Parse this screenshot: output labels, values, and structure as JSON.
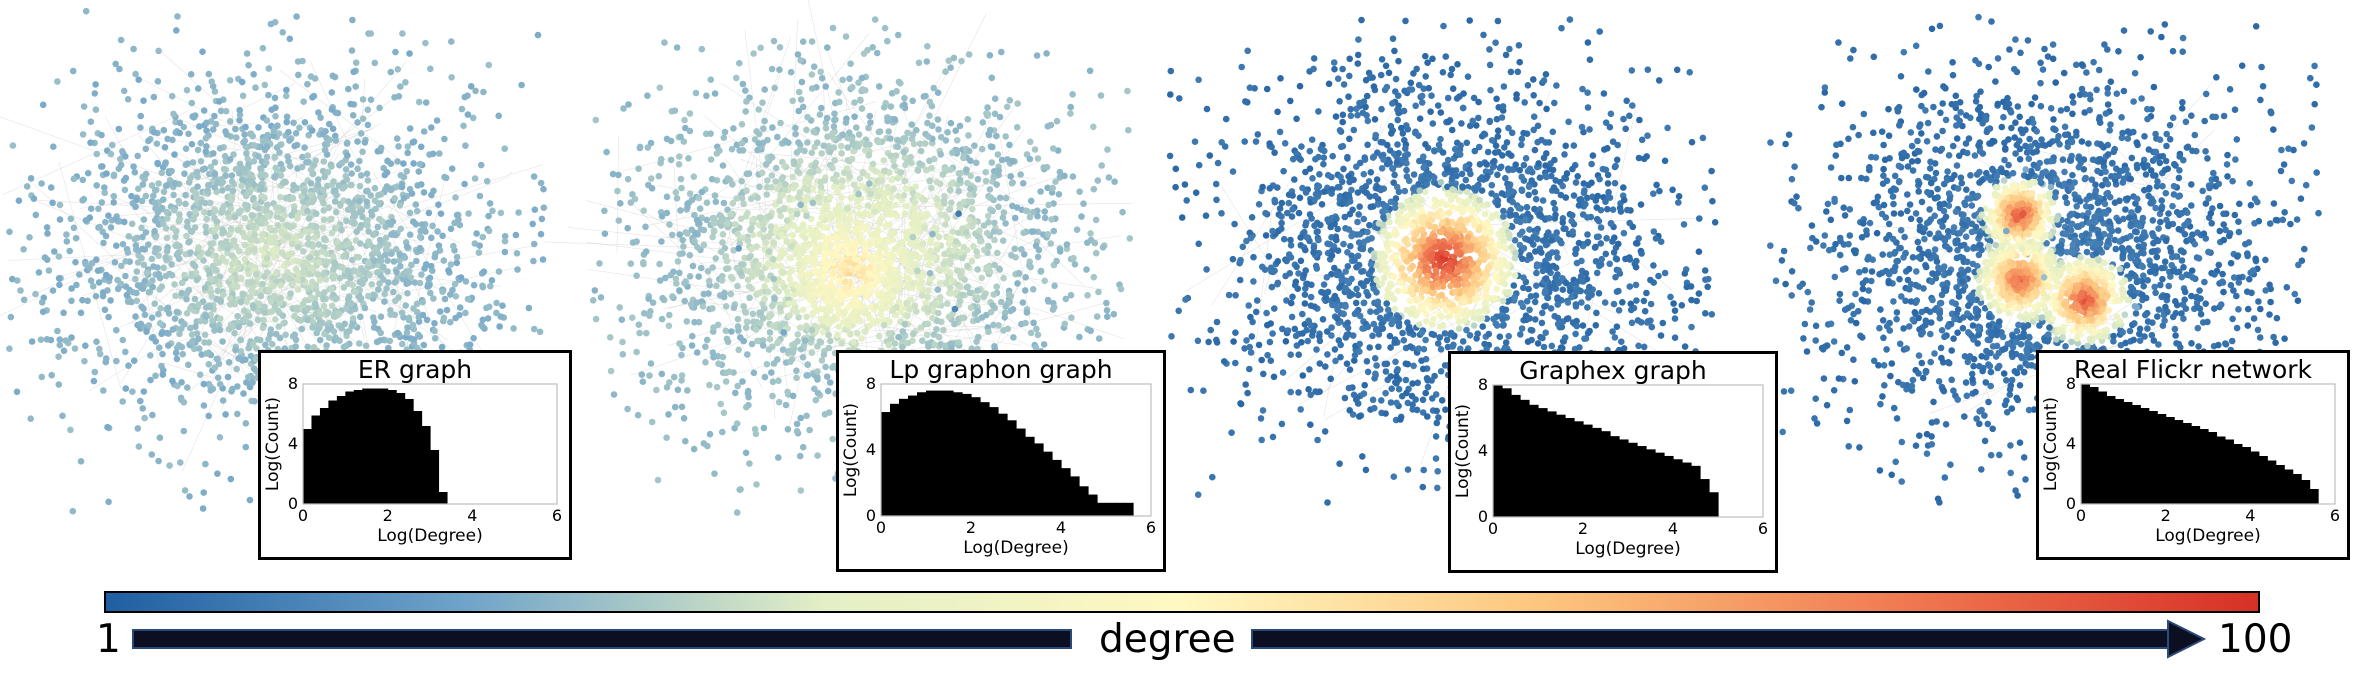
{
  "colors": {
    "colormap": [
      "#1f5ea1",
      "#6fa3c9",
      "#e3efc5",
      "#fff8c2",
      "#fdc67f",
      "#f07a52",
      "#d73027"
    ],
    "edge": "#c9c9c9",
    "bars": "#000000"
  },
  "colorbar": {
    "min_label": "1",
    "max_label": "100",
    "label": "degree"
  },
  "chart_data": [
    {
      "type": "bar",
      "title": "ER graph",
      "xlabel": "Log(Degree)",
      "ylabel": "Log(Count)",
      "xlim": [
        0,
        6
      ],
      "ylim": [
        0,
        8
      ],
      "xticks": [
        0,
        2,
        4,
        6
      ],
      "yticks": [
        0,
        4,
        8
      ],
      "x": [
        0.0,
        0.2,
        0.4,
        0.6,
        0.8,
        1.0,
        1.2,
        1.4,
        1.6,
        1.8,
        2.0,
        2.2,
        2.4,
        2.6,
        2.8,
        3.0,
        3.2
      ],
      "values": [
        5.0,
        5.9,
        6.4,
        6.9,
        7.2,
        7.5,
        7.6,
        7.7,
        7.7,
        7.7,
        7.6,
        7.4,
        7.0,
        6.2,
        5.2,
        3.6,
        0.8
      ],
      "bin_width": 0.2
    },
    {
      "type": "bar",
      "title": "Lp graphon graph",
      "xlabel": "Log(Degree)",
      "ylabel": "Log(Count)",
      "xlim": [
        0,
        6
      ],
      "ylim": [
        0,
        8
      ],
      "xticks": [
        0,
        2,
        4,
        6
      ],
      "yticks": [
        0,
        4,
        8
      ],
      "x": [
        0.0,
        0.2,
        0.4,
        0.6,
        0.8,
        1.0,
        1.2,
        1.4,
        1.6,
        1.8,
        2.0,
        2.2,
        2.4,
        2.6,
        2.8,
        3.0,
        3.2,
        3.4,
        3.6,
        3.8,
        4.0,
        4.2,
        4.4,
        4.6,
        4.8,
        5.0,
        5.2,
        5.4
      ],
      "values": [
        6.3,
        6.8,
        7.1,
        7.3,
        7.5,
        7.6,
        7.6,
        7.6,
        7.5,
        7.4,
        7.2,
        6.9,
        6.6,
        6.2,
        5.8,
        5.3,
        4.8,
        4.4,
        3.9,
        3.4,
        2.9,
        2.4,
        1.8,
        1.3,
        0.8,
        0.8,
        0.8,
        0.8
      ],
      "bin_width": 0.2
    },
    {
      "type": "bar",
      "title": "Graphex graph",
      "xlabel": "Log(Degree)",
      "ylabel": "Log(Count)",
      "xlim": [
        0,
        6
      ],
      "ylim": [
        0,
        8
      ],
      "xticks": [
        0,
        2,
        4,
        6
      ],
      "yticks": [
        0,
        4,
        8
      ],
      "x": [
        0.0,
        0.2,
        0.4,
        0.6,
        0.8,
        1.0,
        1.2,
        1.4,
        1.6,
        1.8,
        2.0,
        2.2,
        2.4,
        2.6,
        2.8,
        3.0,
        3.2,
        3.4,
        3.6,
        3.8,
        4.0,
        4.2,
        4.4,
        4.6,
        4.8
      ],
      "values": [
        8.0,
        7.8,
        7.4,
        7.1,
        6.8,
        6.6,
        6.4,
        6.2,
        6.0,
        5.8,
        5.6,
        5.4,
        5.2,
        4.9,
        4.7,
        4.5,
        4.3,
        4.1,
        3.9,
        3.7,
        3.5,
        3.3,
        3.1,
        2.3,
        1.5
      ],
      "bin_width": 0.2
    },
    {
      "type": "bar",
      "title": "Real Flickr network",
      "xlabel": "Log(Degree)",
      "ylabel": "Log(Count)",
      "xlim": [
        0,
        6
      ],
      "ylim": [
        0,
        8
      ],
      "xticks": [
        0,
        2,
        4,
        6
      ],
      "yticks": [
        0,
        4,
        8
      ],
      "x": [
        0.0,
        0.2,
        0.4,
        0.6,
        0.8,
        1.0,
        1.2,
        1.4,
        1.6,
        1.8,
        2.0,
        2.2,
        2.4,
        2.6,
        2.8,
        3.0,
        3.2,
        3.4,
        3.6,
        3.8,
        4.0,
        4.2,
        4.4,
        4.6,
        4.8,
        5.0,
        5.2,
        5.4
      ],
      "values": [
        8.0,
        7.8,
        7.5,
        7.2,
        7.0,
        6.8,
        6.6,
        6.4,
        6.2,
        6.0,
        5.8,
        5.6,
        5.4,
        5.2,
        5.0,
        4.8,
        4.5,
        4.3,
        4.0,
        3.8,
        3.5,
        3.2,
        2.9,
        2.6,
        2.3,
        2.0,
        1.6,
        1.0
      ],
      "bin_width": 0.2
    }
  ]
}
